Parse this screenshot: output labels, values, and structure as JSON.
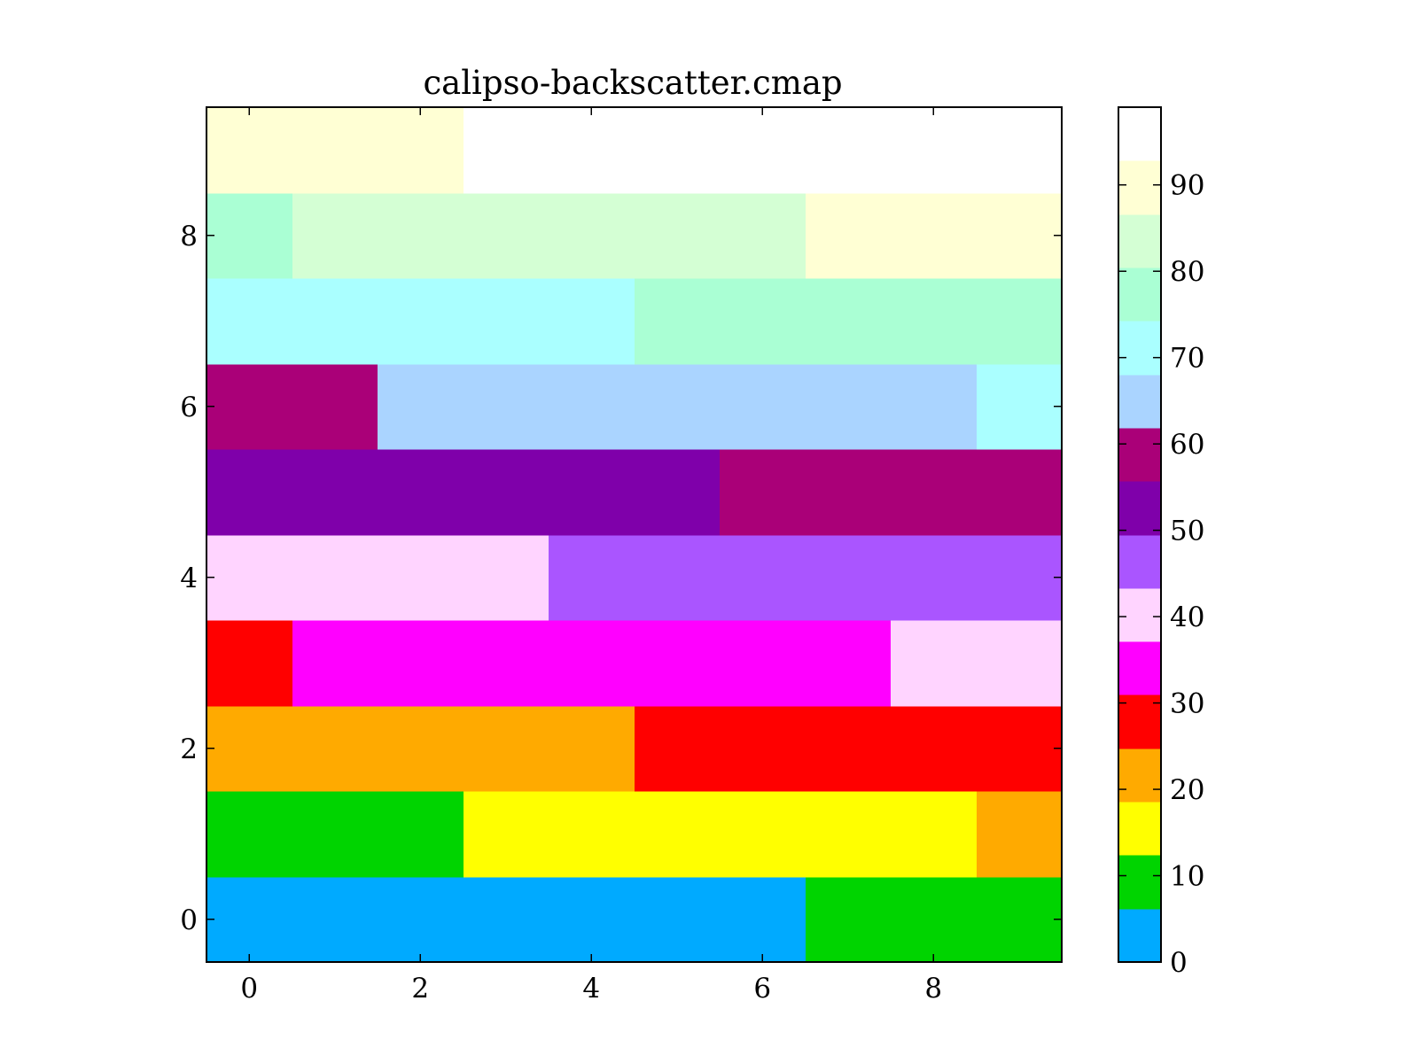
{
  "chart_data": {
    "type": "heatmap",
    "title": "calipso-backscatter.cmap",
    "xlabel": "",
    "ylabel": "",
    "xlim": [
      -0.5,
      9.5
    ],
    "ylim": [
      -0.5,
      9.5
    ],
    "x_ticks": [
      0,
      2,
      4,
      6,
      8
    ],
    "y_ticks": [
      0,
      2,
      4,
      6,
      8
    ],
    "x_tick_labels": [
      "0",
      "2",
      "4",
      "6",
      "8"
    ],
    "y_tick_labels": [
      "0",
      "2",
      "4",
      "6",
      "8"
    ],
    "grid": false,
    "values": [
      [
        0,
        0,
        0,
        0,
        0,
        0,
        0,
        1,
        1,
        1
      ],
      [
        1,
        1,
        1,
        2,
        2,
        2,
        2,
        2,
        2,
        3
      ],
      [
        3,
        3,
        3,
        3,
        3,
        4,
        4,
        4,
        4,
        4
      ],
      [
        4,
        5,
        5,
        5,
        5,
        5,
        5,
        5,
        6,
        6
      ],
      [
        6,
        6,
        6,
        6,
        7,
        7,
        7,
        7,
        7,
        7
      ],
      [
        8,
        8,
        8,
        8,
        8,
        8,
        9,
        9,
        9,
        9
      ],
      [
        9,
        9,
        10,
        10,
        10,
        10,
        10,
        10,
        10,
        11
      ],
      [
        11,
        11,
        11,
        11,
        11,
        12,
        12,
        12,
        12,
        12
      ],
      [
        12,
        13,
        13,
        13,
        13,
        13,
        13,
        14,
        14,
        14
      ],
      [
        14,
        14,
        14,
        15,
        15,
        15,
        15,
        15,
        15,
        15
      ]
    ],
    "colorbar": {
      "range": [
        0,
        99
      ],
      "ticks": [
        0,
        10,
        20,
        30,
        40,
        50,
        60,
        70,
        80,
        90
      ],
      "tick_labels": [
        "0",
        "10",
        "20",
        "30",
        "40",
        "50",
        "60",
        "70",
        "80",
        "90"
      ],
      "colors": [
        "#00aaff",
        "#00d400",
        "#ffff00",
        "#ffaa00",
        "#ff0000",
        "#ff00ff",
        "#ffd4ff",
        "#aa55ff",
        "#7f00aa",
        "#aa0078",
        "#aad4ff",
        "#aaffff",
        "#aaffd4",
        "#d4ffd4",
        "#ffffd4",
        "#ffffff"
      ]
    }
  }
}
